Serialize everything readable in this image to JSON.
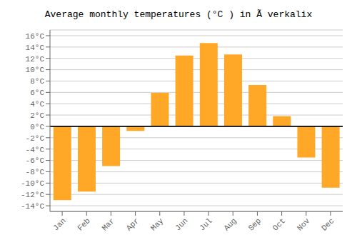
{
  "chart_data": {
    "type": "bar",
    "title": "Average monthly temperatures (°C ) in Ã verkalix",
    "categories": [
      "Jan",
      "Feb",
      "Mar",
      "Apr",
      "May",
      "Jun",
      "Jul",
      "Aug",
      "Sep",
      "Oct",
      "Nov",
      "Dec"
    ],
    "values": [
      -13.0,
      -11.5,
      -7.0,
      -0.8,
      5.9,
      12.5,
      14.7,
      12.7,
      7.3,
      1.8,
      -5.5,
      -10.8
    ],
    "color": "#FFA726",
    "ylim": [
      -15,
      17
    ],
    "yticks": [
      {
        "value": -14,
        "label": "-14°C"
      },
      {
        "value": -12,
        "label": "-12°C"
      },
      {
        "value": -10,
        "label": "-10°C"
      },
      {
        "value": -8,
        "label": "-8°C"
      },
      {
        "value": -6,
        "label": "-6°C"
      },
      {
        "value": -4,
        "label": "-4°C"
      },
      {
        "value": -2,
        "label": "-2°C"
      },
      {
        "value": 0,
        "label": "0°C"
      },
      {
        "value": 2,
        "label": "2°C"
      },
      {
        "value": 4,
        "label": "4°C"
      },
      {
        "value": 6,
        "label": "6°C"
      },
      {
        "value": 8,
        "label": "8°C"
      },
      {
        "value": 10,
        "label": "10°C"
      },
      {
        "value": 12,
        "label": "12°C"
      },
      {
        "value": 14,
        "label": "14°C"
      },
      {
        "value": 16,
        "label": "16°C"
      }
    ],
    "grid": true
  }
}
